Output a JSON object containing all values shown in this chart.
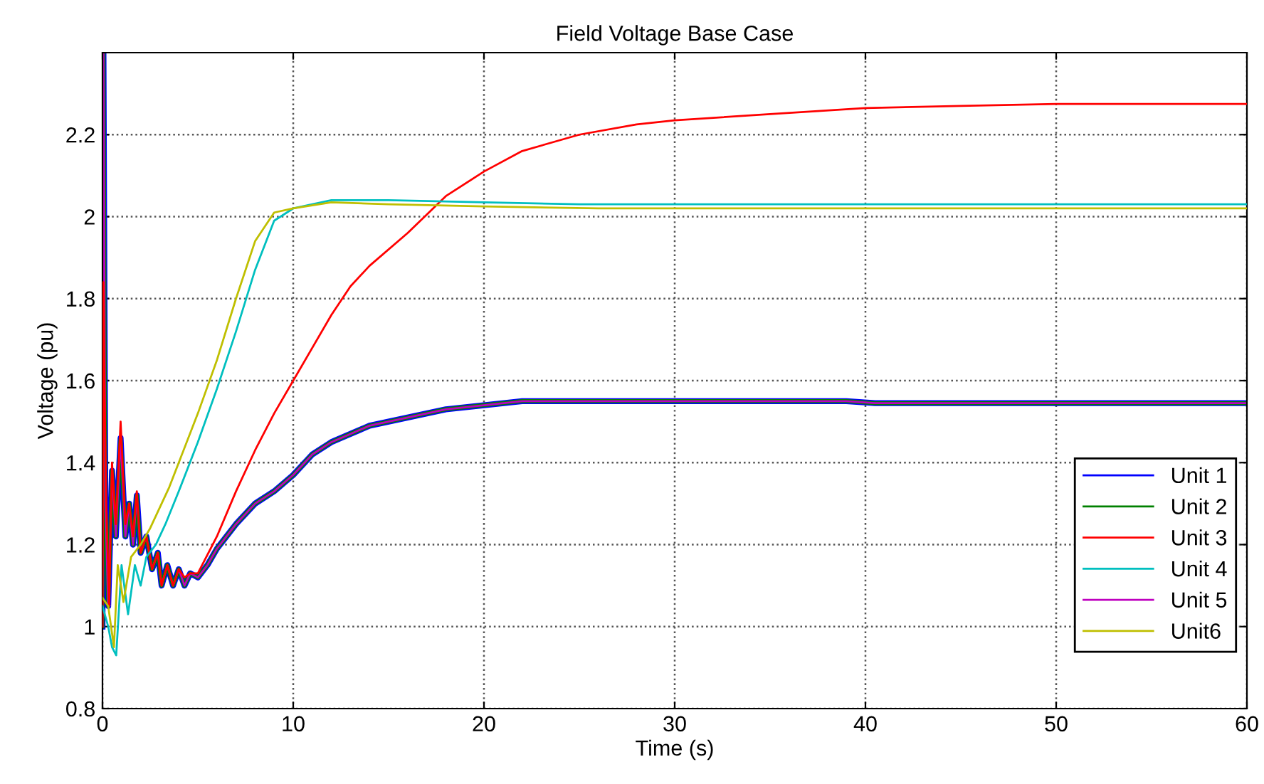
{
  "chart_data": {
    "type": "line",
    "title": "Field Voltage Base Case",
    "xlabel": "Time (s)",
    "ylabel": "Voltage (pu)",
    "xlim": [
      0,
      60
    ],
    "xticks": [
      0,
      10,
      20,
      30,
      40,
      50,
      60
    ],
    "ylim": [
      0.8,
      2.4
    ],
    "yticks": [
      0.8,
      1,
      1.2,
      1.4,
      1.6,
      1.8,
      2,
      2.2
    ],
    "grid": true,
    "legend": "bottom right",
    "line_style": "solid",
    "marker": "none",
    "series": [
      {
        "name": "Unit 1",
        "color": "#0000ff",
        "x": [
          0,
          0.05,
          0.15,
          0.3,
          0.5,
          0.7,
          0.95,
          1.2,
          1.4,
          1.6,
          1.8,
          2.0,
          2.3,
          2.6,
          2.9,
          3.1,
          3.4,
          3.7,
          4.0,
          4.3,
          4.6,
          5.0,
          5.5,
          6,
          7,
          8,
          9,
          10,
          11,
          12,
          13,
          14,
          16,
          18,
          20,
          22,
          39,
          40.5,
          60
        ],
        "values": [
          1.0,
          2.4,
          1.3,
          1.05,
          1.38,
          1.22,
          1.46,
          1.22,
          1.3,
          1.2,
          1.32,
          1.18,
          1.22,
          1.14,
          1.18,
          1.1,
          1.15,
          1.1,
          1.14,
          1.1,
          1.13,
          1.12,
          1.15,
          1.19,
          1.25,
          1.3,
          1.33,
          1.37,
          1.42,
          1.45,
          1.47,
          1.49,
          1.51,
          1.53,
          1.54,
          1.55,
          1.55,
          1.545,
          1.545
        ]
      },
      {
        "name": "Unit 2",
        "color": "#008000",
        "x": [
          0,
          0.05,
          0.15,
          0.3,
          0.5,
          0.7,
          0.95,
          1.2,
          1.4,
          1.6,
          1.8,
          2.0,
          2.3,
          2.6,
          2.9,
          3.1,
          3.4,
          3.7,
          4.0,
          4.3,
          4.6,
          5.0,
          5.5,
          6,
          7,
          8,
          9,
          10,
          11,
          12,
          13,
          14,
          16,
          18,
          20,
          22,
          39,
          40.5,
          60
        ],
        "values": [
          1.0,
          2.4,
          1.3,
          1.05,
          1.38,
          1.22,
          1.46,
          1.22,
          1.3,
          1.2,
          1.32,
          1.18,
          1.22,
          1.14,
          1.18,
          1.1,
          1.15,
          1.1,
          1.14,
          1.1,
          1.13,
          1.12,
          1.15,
          1.19,
          1.25,
          1.3,
          1.33,
          1.37,
          1.42,
          1.45,
          1.47,
          1.49,
          1.51,
          1.53,
          1.54,
          1.55,
          1.55,
          1.545,
          1.545
        ]
      },
      {
        "name": "Unit 3",
        "color": "#ff0000",
        "x": [
          0,
          0.05,
          0.1,
          0.2,
          0.35,
          0.5,
          0.7,
          0.95,
          1.2,
          1.4,
          1.6,
          1.8,
          2.0,
          2.3,
          2.6,
          2.9,
          3.1,
          3.4,
          3.7,
          4.0,
          4.3,
          4.6,
          5,
          6,
          7,
          8,
          9,
          10,
          11,
          12,
          13,
          14,
          16,
          18,
          20,
          22,
          25,
          28,
          30,
          35,
          40,
          45,
          50,
          60
        ],
        "values": [
          1.0,
          1.84,
          1.6,
          1.3,
          1.05,
          1.4,
          1.25,
          1.5,
          1.25,
          1.3,
          1.22,
          1.33,
          1.18,
          1.22,
          1.14,
          1.18,
          1.1,
          1.15,
          1.1,
          1.14,
          1.12,
          1.13,
          1.13,
          1.22,
          1.33,
          1.43,
          1.52,
          1.6,
          1.68,
          1.76,
          1.83,
          1.88,
          1.96,
          2.05,
          2.11,
          2.16,
          2.2,
          2.225,
          2.235,
          2.25,
          2.265,
          2.27,
          2.275,
          2.275
        ]
      },
      {
        "name": "Unit 4",
        "color": "#00bfbf",
        "x": [
          0,
          0.3,
          0.5,
          0.72,
          1.0,
          1.34,
          1.7,
          2.0,
          2.3,
          2.8,
          3.3,
          4,
          5,
          6,
          7,
          8,
          9,
          10,
          12,
          15,
          20,
          25,
          60
        ],
        "values": [
          1.05,
          1.0,
          0.95,
          0.93,
          1.15,
          1.03,
          1.15,
          1.1,
          1.17,
          1.2,
          1.25,
          1.33,
          1.45,
          1.58,
          1.72,
          1.87,
          1.99,
          2.02,
          2.04,
          2.04,
          2.035,
          2.03,
          2.03
        ]
      },
      {
        "name": "Unit 5",
        "color": "#bf00bf",
        "x": [
          0,
          0.05,
          0.15,
          0.3,
          0.5,
          0.7,
          0.95,
          1.2,
          1.4,
          1.6,
          1.8,
          2.0,
          2.3,
          2.6,
          2.9,
          3.1,
          3.4,
          3.7,
          4.0,
          4.3,
          4.6,
          5.0,
          5.5,
          6,
          7,
          8,
          9,
          10,
          11,
          12,
          13,
          14,
          16,
          18,
          20,
          22,
          39,
          40.5,
          60
        ],
        "values": [
          1.0,
          2.4,
          1.3,
          1.05,
          1.38,
          1.22,
          1.46,
          1.22,
          1.3,
          1.2,
          1.32,
          1.18,
          1.22,
          1.14,
          1.18,
          1.1,
          1.15,
          1.1,
          1.14,
          1.1,
          1.13,
          1.12,
          1.15,
          1.19,
          1.25,
          1.3,
          1.33,
          1.37,
          1.42,
          1.45,
          1.47,
          1.49,
          1.51,
          1.53,
          1.54,
          1.55,
          1.55,
          1.545,
          1.545
        ]
      },
      {
        "name": "Unit6",
        "color": "#bfbf00",
        "x": [
          0,
          0.3,
          0.6,
          0.8,
          1.1,
          1.5,
          2,
          2.5,
          3,
          3.5,
          4,
          5,
          6,
          7,
          8,
          9,
          10,
          12,
          15,
          20,
          26,
          60
        ],
        "values": [
          1.07,
          1.05,
          0.95,
          1.15,
          1.06,
          1.17,
          1.2,
          1.24,
          1.29,
          1.34,
          1.4,
          1.52,
          1.65,
          1.8,
          1.94,
          2.01,
          2.02,
          2.035,
          2.03,
          2.025,
          2.02,
          2.02
        ]
      }
    ]
  }
}
